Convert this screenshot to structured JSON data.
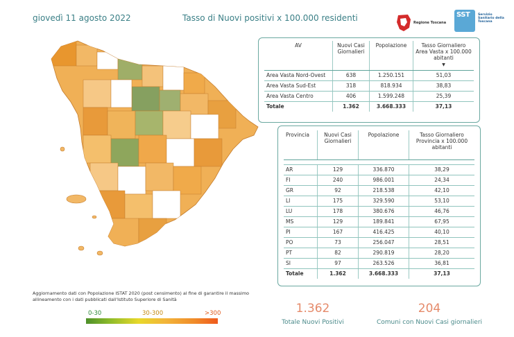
{
  "header": {
    "date": "giovedì 11 agosto 2022",
    "title": "Tasso di Nuovi positivi x 100.000 residenti"
  },
  "logos": {
    "regione": "Regione Toscana",
    "sst_big": "SST",
    "sst_small": "Servizio Sanitario della Toscana"
  },
  "av_table": {
    "headers": [
      "AV",
      "Nuovi Casi Giornalieri",
      "Popolazione",
      "Tasso Giornaliero Area Vasta x 100.000 abitanti"
    ],
    "rows": [
      [
        "Area Vasta Nord-Ovest",
        "638",
        "1.250.151",
        "51,03"
      ],
      [
        "Area Vasta Sud-Est",
        "318",
        "818.934",
        "38,83"
      ],
      [
        "Area Vasta Centro",
        "406",
        "1.599.248",
        "25,39"
      ]
    ],
    "total": [
      "Totale",
      "1.362",
      "3.668.333",
      "37,13"
    ]
  },
  "prov_table": {
    "headers": [
      "Provincia",
      "Nuovi Casi Giornalieri",
      "Popolazione",
      "Tasso Giornaliero Provincia x 100.000 abitanti"
    ],
    "rows": [
      [
        "AR",
        "129",
        "336.870",
        "38,29"
      ],
      [
        "FI",
        "240",
        "986.001",
        "24,34"
      ],
      [
        "GR",
        "92",
        "218.538",
        "42,10"
      ],
      [
        "LI",
        "175",
        "329.590",
        "53,10"
      ],
      [
        "LU",
        "178",
        "380.676",
        "46,76"
      ],
      [
        "MS",
        "129",
        "189.841",
        "67,95"
      ],
      [
        "PI",
        "167",
        "416.425",
        "40,10"
      ],
      [
        "PO",
        "73",
        "256.047",
        "28,51"
      ],
      [
        "PT",
        "82",
        "290.819",
        "28,20"
      ],
      [
        "SI",
        "97",
        "263.526",
        "36,81"
      ]
    ],
    "total": [
      "Totale",
      "1.362",
      "3.668.333",
      "37,13"
    ]
  },
  "note": "Aggiornamento dati con Popolazione ISTAT 2020 (post censimento) al fine di garantire il massimo allineamento con i dati pubblicati dall'Istituto Superiore di Sanità",
  "legend": {
    "low": "0-30",
    "mid": "30-300",
    "high": ">300"
  },
  "kpis": {
    "total_value": "1.362",
    "total_label": "Totale Nuovi Positivi",
    "comuni_value": "204",
    "comuni_label": "Comuni con Nuovi Casi giornalieri"
  },
  "colors": {
    "accent_teal": "#3a7f86",
    "kpi_value": "#e58a6a",
    "map_orange": "#f0a94a",
    "map_green": "#8fa65a",
    "map_empty": "#ffffff"
  }
}
